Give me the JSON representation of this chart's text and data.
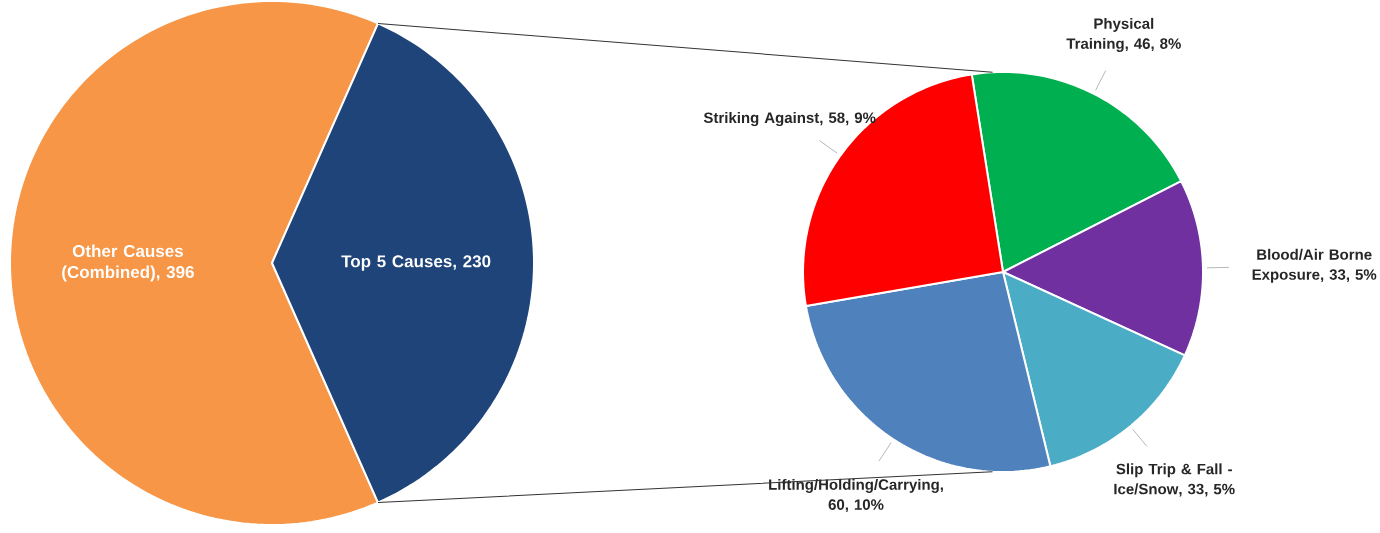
{
  "chart_data": [
    {
      "type": "pie",
      "categories": [
        "Other Causes (Combined)",
        "Top 5 Causes"
      ],
      "values": [
        396,
        230
      ],
      "value_labels": [
        ", 396",
        ", 230"
      ],
      "colors": [
        "#f79646",
        "#1f4479"
      ]
    },
    {
      "type": "pie",
      "categories": [
        "Physical Training",
        "Blood/Air Borne Exposure",
        "Slip Trip & Fall - Ice/Snow",
        "Lifting/Holding/Carrying",
        "Striking Against"
      ],
      "values": [
        46,
        33,
        33,
        60,
        58
      ],
      "value_labels": [
        ", 46, 8%",
        ", 33, 5%",
        ", 33, 5%",
        ", 60, 10%",
        ", 58, 9%"
      ],
      "colors": [
        "#00b050",
        "#7030a0",
        "#4bacc6",
        "#4f81bd",
        "#ff0000"
      ]
    }
  ]
}
